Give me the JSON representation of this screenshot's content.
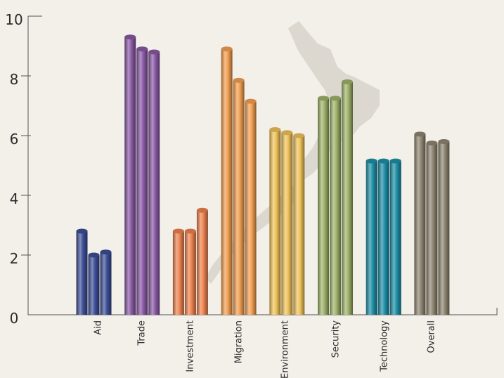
{
  "chart_data": {
    "type": "bar",
    "categories": [
      "Aid",
      "Trade",
      "Investment",
      "Migration",
      "Environment",
      "Security",
      "Technology",
      "Overall"
    ],
    "series": [
      {
        "values": [
          2.8,
          9.3,
          2.8,
          8.9,
          6.2,
          7.25,
          5.15,
          6.05
        ]
      },
      {
        "values": [
          2.0,
          8.9,
          2.8,
          7.85,
          6.1,
          7.25,
          5.15,
          5.75
        ]
      },
      {
        "values": [
          2.1,
          8.8,
          3.5,
          7.15,
          6.0,
          7.8,
          5.15,
          5.8
        ]
      }
    ],
    "category_colors": [
      "#3d4f96",
      "#8a5aa6",
      "#ee8350",
      "#f3a052",
      "#f0c35a",
      "#9fb36a",
      "#1f8fa8",
      "#8f8672"
    ],
    "y_ticks": [
      "0",
      "2",
      "4",
      "6",
      "8",
      "10"
    ],
    "ylim": [
      0,
      10
    ],
    "title": "",
    "xlabel": "",
    "ylabel": "",
    "grid": false,
    "background_map": "new-zealand-map"
  }
}
